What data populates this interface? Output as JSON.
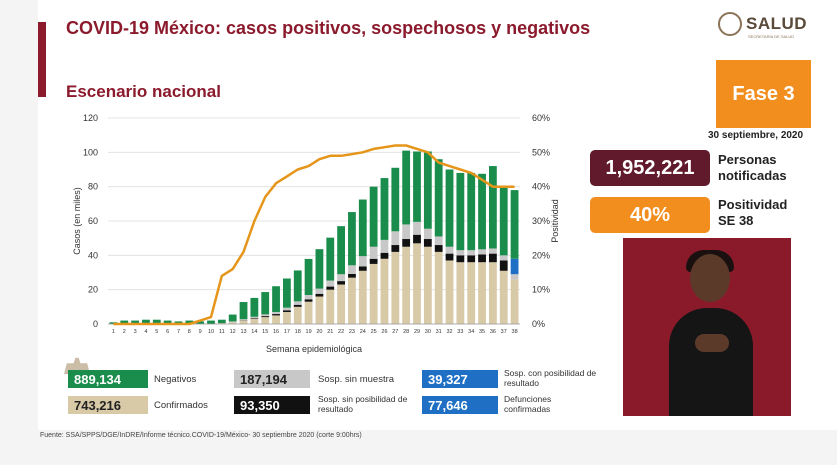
{
  "header": {
    "title": "COVID-19 México: casos positivos, sospechosos y negativos",
    "subtitle": "Escenario nacional",
    "logo_text": "SALUD",
    "logo_subtext": "SECRETARÍA DE SALUD"
  },
  "colors": {
    "accent": "#8b1a2c",
    "orange": "#f28e1e",
    "negativos": "#1a8d4c",
    "sospechosos": "#c8c8c8",
    "confirmados": "#d8c9a7",
    "sin_posibilidad": "#111111",
    "con_posibilidad": "#1f6fc4",
    "positividad": "#e5961a",
    "dark_box": "#611a2b"
  },
  "fase": {
    "label": "Fase 3",
    "date": "30 septiembre, 2020"
  },
  "stats": [
    {
      "value": "1,952,221",
      "label": "Personas notificadas"
    },
    {
      "value": "40%",
      "label": "Positividad SE 38"
    }
  ],
  "legend": [
    {
      "value": "889,134",
      "label": "Negativos"
    },
    {
      "value": "187,194",
      "label": "Sosp. sin muestra"
    },
    {
      "value": "39,327",
      "label": "Sosp. con posibilidad de resultado"
    },
    {
      "value": "743,216",
      "label": "Confirmados"
    },
    {
      "value": "93,350",
      "label": "Sosp. sin posibilidad de resultado"
    },
    {
      "value": "77,646",
      "label": "Defunciones confirmadas"
    }
  ],
  "footer": "Fuente: SSA/SPPS/DGE/InDRE/Informe técnico.COVID-19/México- 30 septiembre 2020 (corte 9:00hrs)",
  "chart_data": {
    "type": "bar",
    "xlabel": "Semana epidemiológica",
    "ylabel": "Casos (en miles)",
    "y2label": "Positividad",
    "ylim": [
      0,
      120
    ],
    "yticks": [
      0,
      20,
      40,
      60,
      80,
      100,
      120
    ],
    "y2lim": [
      0,
      60
    ],
    "y2ticks": [
      "0%",
      "10%",
      "20%",
      "30%",
      "40%",
      "50%",
      "60%"
    ],
    "grid": true,
    "categories": [
      "1",
      "2",
      "3",
      "4",
      "5",
      "6",
      "7",
      "8",
      "9",
      "10",
      "11",
      "12",
      "13",
      "14",
      "15",
      "16",
      "17",
      "18",
      "19",
      "20",
      "21",
      "22",
      "23",
      "24",
      "25",
      "26",
      "27",
      "28",
      "29",
      "30",
      "31",
      "32",
      "33",
      "34",
      "35",
      "36",
      "37",
      "38"
    ],
    "series": [
      {
        "name": "Confirmados",
        "values": [
          0,
          0,
          0,
          0,
          0,
          0,
          0,
          0,
          0,
          0,
          0.5,
          1,
          2,
          3,
          4,
          5,
          7,
          10,
          13,
          16,
          20,
          23,
          27,
          31,
          35,
          38,
          42,
          45,
          47,
          45,
          42,
          37,
          36,
          36,
          36,
          36,
          31,
          26
        ]
      },
      {
        "name": "Sosp. sin posibilidad de resultado",
        "values": [
          0,
          0,
          0,
          0,
          0,
          0,
          0,
          0,
          0,
          0,
          0,
          0,
          0.2,
          0.4,
          0.6,
          0.8,
          1,
          1.2,
          1.4,
          1.6,
          1.8,
          2,
          2.2,
          2.5,
          3,
          3.5,
          4,
          4.5,
          5,
          4.5,
          4,
          4,
          4,
          4,
          4.5,
          5,
          6,
          0
        ]
      },
      {
        "name": "Sosp. sin muestra",
        "values": [
          0,
          0,
          0,
          0,
          0,
          0,
          0,
          0,
          0,
          0,
          0,
          0.5,
          0.6,
          0.8,
          1,
          1.2,
          1.5,
          2,
          2.5,
          3,
          3.5,
          4,
          5,
          6,
          7,
          7.5,
          8,
          8.5,
          7.5,
          6,
          5,
          4,
          3,
          3,
          3,
          3,
          3,
          3
        ]
      },
      {
        "name": "Sosp. con posibilidad de resultado",
        "values": [
          0,
          0,
          0,
          0,
          0,
          0,
          0,
          0,
          0,
          0,
          0,
          0,
          0,
          0,
          0,
          0,
          0,
          0,
          0,
          0,
          0,
          0,
          0,
          0,
          0,
          0,
          0,
          0,
          0,
          0,
          0,
          0,
          0,
          0,
          0,
          0,
          0,
          9
        ]
      },
      {
        "name": "Negativos",
        "values": [
          1,
          2,
          2,
          2.5,
          2.5,
          2,
          1.5,
          2,
          1.5,
          2,
          2,
          4,
          10,
          11,
          13,
          15,
          17,
          18,
          21,
          23,
          25,
          28,
          31,
          33,
          35,
          36,
          37,
          43,
          41,
          45,
          45,
          45,
          45,
          45,
          44,
          48,
          40,
          40
        ]
      }
    ],
    "positividad": [
      0,
      0,
      0,
      0,
      0,
      0,
      0,
      0,
      1,
      2,
      14,
      16,
      21,
      30,
      37,
      41,
      43,
      45,
      46,
      48,
      49,
      49,
      49.5,
      50,
      51,
      51.5,
      52,
      52,
      51,
      50,
      47,
      46,
      45,
      44,
      42,
      40,
      40,
      40
    ]
  }
}
